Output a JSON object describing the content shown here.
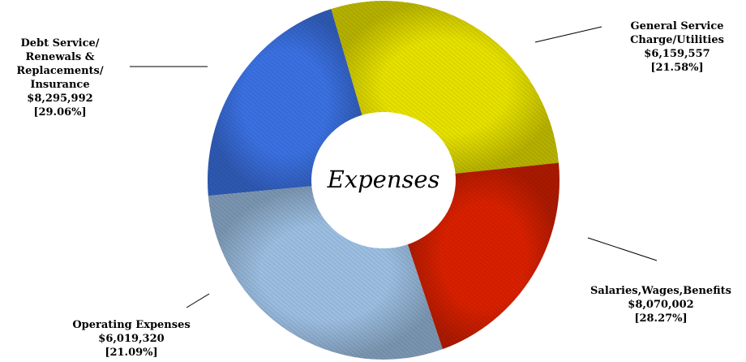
{
  "chart_data": {
    "type": "pie",
    "title": "Expenses",
    "slices": [
      {
        "label_lines": [
          "General Service",
          "Charge/Utilities"
        ],
        "amount": "$6,159,557",
        "percent": "[21.58%]",
        "value": 21.58,
        "color": "#3a70e0"
      },
      {
        "label_lines": [
          "Salaries,Wages,Benefits"
        ],
        "amount": "$8,070,002",
        "percent": "[28.27%]",
        "value": 28.27,
        "color": "#e6e000"
      },
      {
        "label_lines": [
          "Operating Expenses"
        ],
        "amount": "$6,019,320",
        "percent": "[21.09%]",
        "value": 21.09,
        "color": "#d82000"
      },
      {
        "label_lines": [
          "Debt Service/",
          "Renewals &",
          "Replacements/",
          "Insurance"
        ],
        "amount": "$8,295,992",
        "percent": "[29.06%]",
        "value": 29.06,
        "color": "#9bbde0"
      }
    ]
  }
}
